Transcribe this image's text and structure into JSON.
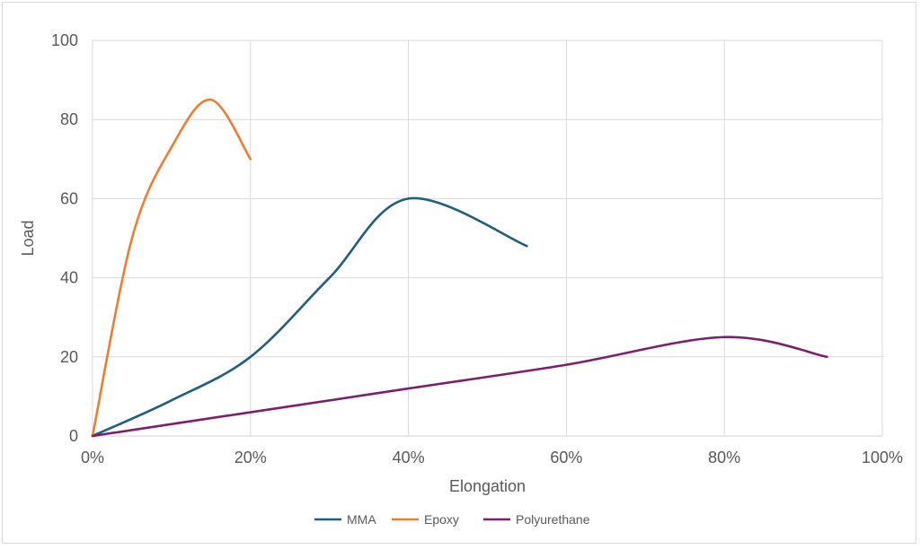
{
  "chart_data": {
    "type": "line",
    "title": "",
    "xlabel": "Elongation",
    "ylabel": "Load",
    "xlim": [
      0,
      1
    ],
    "ylim": [
      0,
      100
    ],
    "x_ticks": [
      0,
      0.2,
      0.4,
      0.6,
      0.8,
      1.0
    ],
    "x_tick_labels": [
      "0%",
      "20%",
      "40%",
      "60%",
      "80%",
      "100%"
    ],
    "y_ticks": [
      0,
      20,
      40,
      60,
      80,
      100
    ],
    "y_tick_labels": [
      "0",
      "20",
      "40",
      "60",
      "80",
      "100"
    ],
    "grid": true,
    "legend_position": "bottom",
    "series": [
      {
        "name": "MMA",
        "color": "#1f5f7f",
        "points": [
          [
            0,
            0
          ],
          [
            0.1,
            9
          ],
          [
            0.2,
            20
          ],
          [
            0.3,
            40
          ],
          [
            0.4,
            60
          ],
          [
            0.55,
            48
          ]
        ]
      },
      {
        "name": "Epoxy",
        "color": "#ed7d31",
        "points": [
          [
            0,
            0
          ],
          [
            0.05,
            50
          ],
          [
            0.1,
            73
          ],
          [
            0.15,
            85
          ],
          [
            0.2,
            70
          ]
        ]
      },
      {
        "name": "Polyurethane",
        "color": "#7b1f6e",
        "points": [
          [
            0,
            0
          ],
          [
            0.2,
            6
          ],
          [
            0.4,
            12
          ],
          [
            0.6,
            18
          ],
          [
            0.8,
            25
          ],
          [
            0.93,
            20
          ]
        ]
      }
    ]
  }
}
